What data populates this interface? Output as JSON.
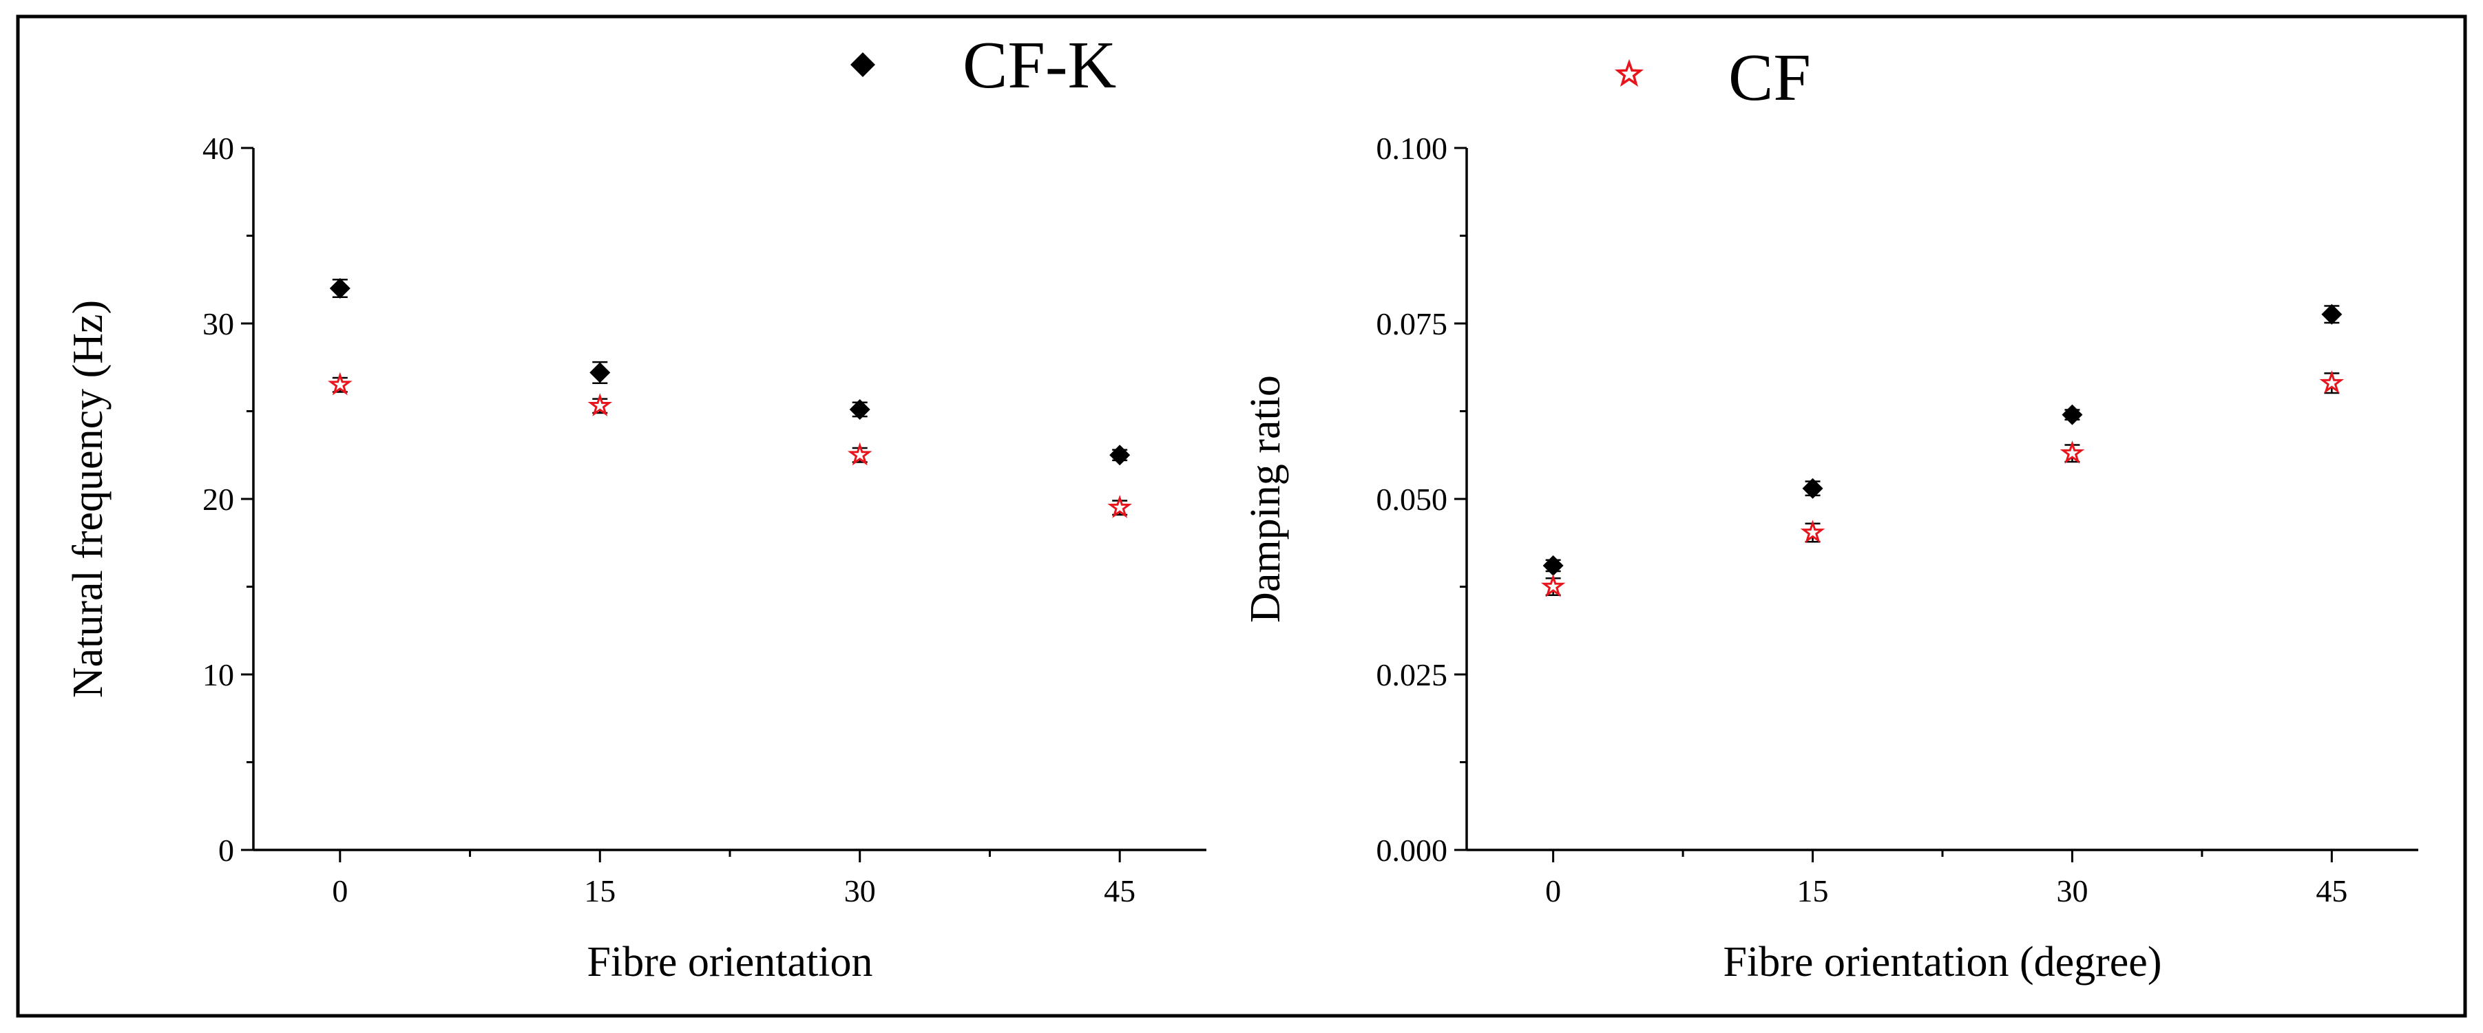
{
  "legend": [
    {
      "label": "CF-K",
      "marker": "diamond-filled",
      "color": "#000000"
    },
    {
      "label": "CF",
      "marker": "star-open",
      "color": "#e8141b"
    }
  ],
  "chart_data": [
    {
      "type": "scatter",
      "xlabel": "Fibre orientation",
      "ylabel": "Natural frequency (Hz)",
      "categories": [
        "0",
        "15",
        "30",
        "45"
      ],
      "x_values": [
        0,
        15,
        30,
        45
      ],
      "xlim": [
        -5,
        50
      ],
      "ylim": [
        0,
        40
      ],
      "yticks": [
        0,
        10,
        20,
        30,
        40
      ],
      "yticklabels": [
        "0",
        "10",
        "20",
        "30",
        "40"
      ],
      "series": [
        {
          "name": "CF-K",
          "values": [
            32.0,
            27.2,
            25.1,
            22.5
          ],
          "errors": [
            0.5,
            0.6,
            0.4,
            0.3
          ]
        },
        {
          "name": "CF",
          "values": [
            26.5,
            25.3,
            22.5,
            19.5
          ],
          "errors": [
            0.4,
            0.4,
            0.4,
            0.4
          ]
        }
      ]
    },
    {
      "type": "scatter",
      "xlabel": "Fibre orientation (degree)",
      "ylabel": "Damping ratio",
      "categories": [
        "0",
        "15",
        "30",
        "45"
      ],
      "x_values": [
        0,
        15,
        30,
        45
      ],
      "xlim": [
        -5,
        50
      ],
      "ylim": [
        0,
        0.1
      ],
      "yticks": [
        0,
        0.025,
        0.05,
        0.075,
        0.1
      ],
      "yticklabels": [
        "0.000",
        "0.025",
        "0.050",
        "0.075",
        "0.100"
      ],
      "series": [
        {
          "name": "CF-K",
          "values": [
            0.0405,
            0.0515,
            0.062,
            0.0763
          ],
          "errors": [
            0.0008,
            0.001,
            0.0007,
            0.0012
          ]
        },
        {
          "name": "CF",
          "values": [
            0.0375,
            0.0452,
            0.0565,
            0.0665
          ],
          "errors": [
            0.0012,
            0.0013,
            0.0012,
            0.0014
          ]
        }
      ]
    }
  ]
}
